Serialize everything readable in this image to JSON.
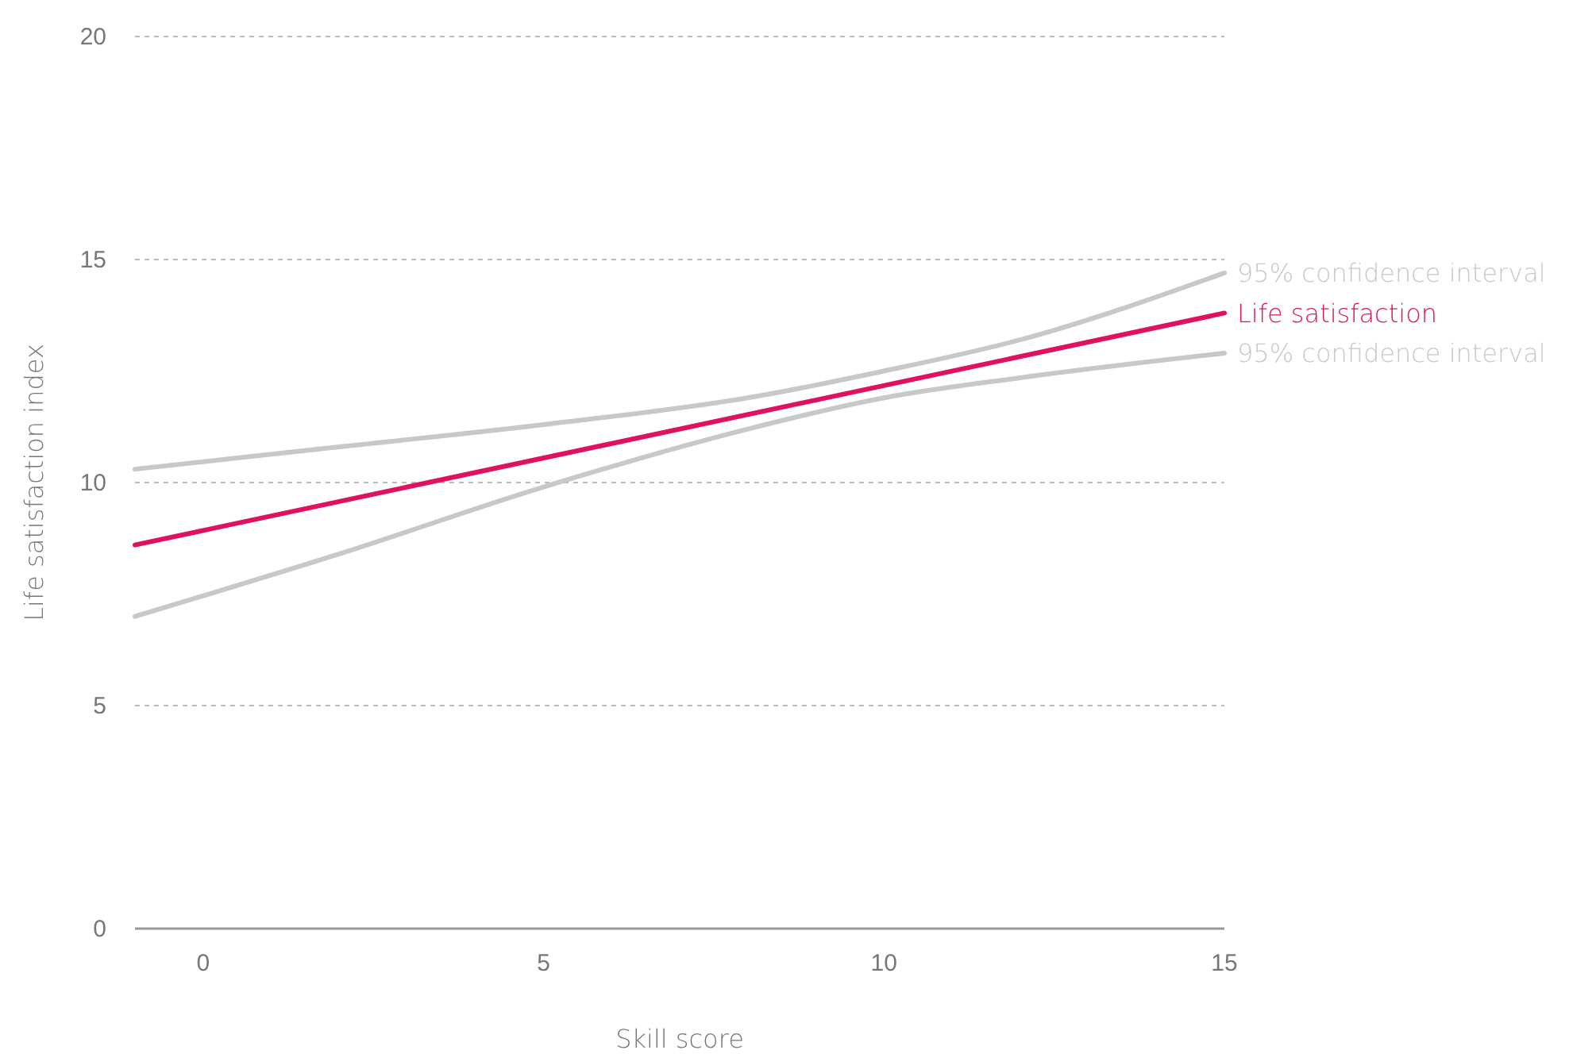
{
  "chart_data": {
    "type": "line",
    "xlabel": "Skill score",
    "ylabel": "Life satisfaction index",
    "xlim": [
      -1,
      15
    ],
    "xticks": [
      0,
      5,
      10,
      15
    ],
    "ylim": [
      0,
      20
    ],
    "yticks": [
      0,
      5,
      10,
      15,
      20
    ],
    "grid": "y",
    "marker": "none",
    "line_style": "solid",
    "series": [
      {
        "name": "95% confidence interval",
        "color": "#c8c8c8",
        "x": [
          -1,
          2,
          5,
          8,
          10,
          12,
          15
        ],
        "values": [
          10.3,
          10.8,
          11.3,
          11.9,
          12.5,
          13.2,
          14.7
        ]
      },
      {
        "name": "Life satisfaction",
        "color": "#e0115f",
        "x": [
          -1,
          15
        ],
        "values": [
          8.6,
          13.8
        ]
      },
      {
        "name": "95% confidence interval",
        "color": "#c8c8c8",
        "x": [
          -1,
          2,
          5,
          8,
          10,
          12,
          15
        ],
        "values": [
          7.0,
          8.4,
          9.9,
          11.2,
          11.9,
          12.35,
          12.9
        ]
      }
    ]
  }
}
